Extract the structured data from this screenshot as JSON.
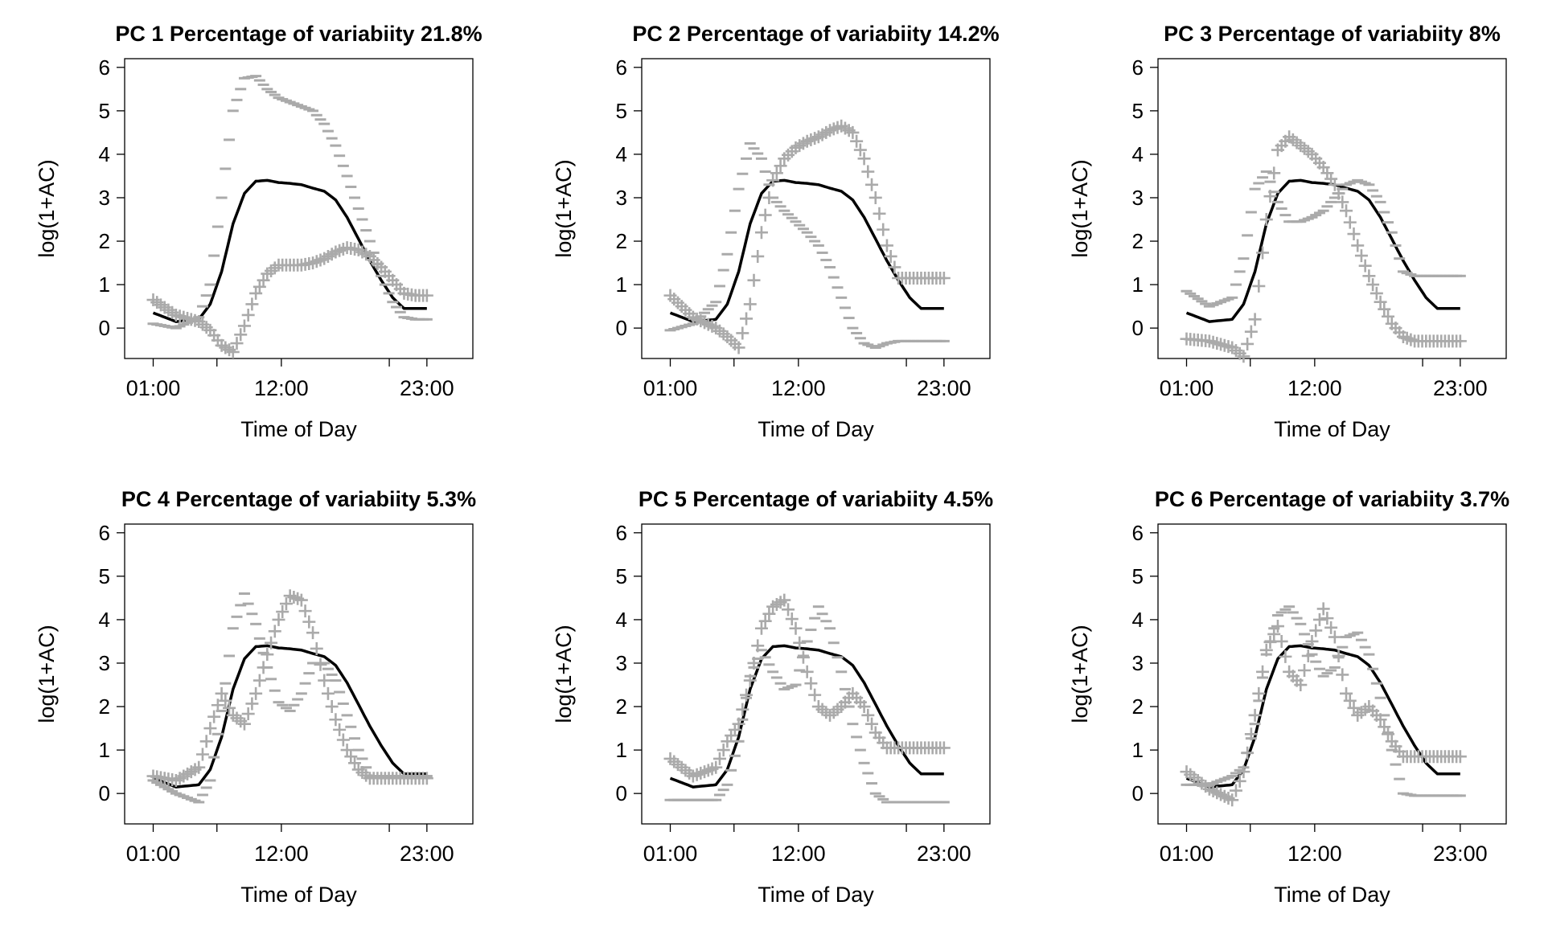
{
  "chart_data": [
    {
      "type": "line",
      "title": "PC 1 Percentage of variabiity 21.8%",
      "xlabel": "Time of Day",
      "ylabel": "log(1+AC)",
      "xticks": [
        "01:00",
        "12:00",
        "23:00"
      ],
      "yticks": [
        "0",
        "1",
        "2",
        "3",
        "4",
        "5",
        "6"
      ],
      "ylim": [
        -0.7,
        6.2
      ],
      "series": [
        {
          "role": "mean",
          "x": [
            0,
            2,
            4,
            5,
            6,
            7,
            8,
            9,
            10,
            11,
            12,
            13,
            14,
            15,
            16,
            17,
            18,
            19,
            20,
            21,
            22,
            23,
            24
          ],
          "y": [
            0.35,
            0.15,
            0.2,
            0.55,
            1.3,
            2.4,
            3.1,
            3.38,
            3.4,
            3.35,
            3.33,
            3.3,
            3.22,
            3.15,
            2.95,
            2.55,
            2.05,
            1.55,
            1.1,
            0.7,
            0.45,
            0.45,
            0.45
          ]
        },
        {
          "role": "plus",
          "x": [
            0,
            2,
            4,
            5,
            6,
            7,
            8,
            9,
            10,
            11,
            12,
            13,
            14,
            15,
            16,
            17,
            18,
            19,
            20,
            21,
            22,
            23,
            24
          ],
          "y": [
            0.65,
            0.3,
            0.15,
            -0.05,
            -0.4,
            -0.55,
            0.05,
            0.8,
            1.25,
            1.45,
            1.45,
            1.45,
            1.5,
            1.6,
            1.75,
            1.85,
            1.8,
            1.65,
            1.4,
            1.1,
            0.8,
            0.75,
            0.75
          ]
        },
        {
          "role": "minus",
          "x": [
            0,
            2,
            4,
            5,
            6,
            7,
            8,
            9,
            10,
            11,
            12,
            13,
            14,
            15,
            16,
            17,
            18,
            19,
            20,
            21,
            22,
            23,
            24
          ],
          "y": [
            0.1,
            0.0,
            0.25,
            1.0,
            3.0,
            5.0,
            5.75,
            5.8,
            5.5,
            5.3,
            5.2,
            5.1,
            5.0,
            4.7,
            4.2,
            3.5,
            2.75,
            2.0,
            1.2,
            0.6,
            0.25,
            0.2,
            0.2
          ]
        }
      ]
    },
    {
      "type": "line",
      "title": "PC 2 Percentage of variabiity 14.2%",
      "xlabel": "Time of Day",
      "ylabel": "log(1+AC)",
      "xticks": [
        "01:00",
        "12:00",
        "23:00"
      ],
      "yticks": [
        "0",
        "1",
        "2",
        "3",
        "4",
        "5",
        "6"
      ],
      "ylim": [
        -0.7,
        6.2
      ],
      "series": [
        {
          "role": "mean",
          "x": [
            0,
            2,
            4,
            5,
            6,
            7,
            8,
            9,
            10,
            11,
            12,
            13,
            14,
            15,
            16,
            17,
            18,
            19,
            20,
            21,
            22,
            23,
            24
          ],
          "y": [
            0.35,
            0.15,
            0.2,
            0.55,
            1.3,
            2.4,
            3.1,
            3.38,
            3.4,
            3.35,
            3.33,
            3.3,
            3.22,
            3.15,
            2.95,
            2.55,
            2.05,
            1.55,
            1.1,
            0.7,
            0.45,
            0.45,
            0.45
          ]
        },
        {
          "role": "plus",
          "x": [
            0,
            2,
            4,
            5,
            6,
            7,
            8,
            9,
            10,
            11,
            12,
            13,
            14,
            15,
            16,
            17,
            18,
            19,
            20,
            21,
            22,
            23,
            24
          ],
          "y": [
            0.75,
            0.25,
            0.0,
            -0.2,
            -0.45,
            0.55,
            2.2,
            3.4,
            3.9,
            4.15,
            4.3,
            4.4,
            4.55,
            4.65,
            4.5,
            3.9,
            3.0,
            1.9,
            1.15,
            1.15,
            1.15,
            1.15,
            1.15
          ]
        },
        {
          "role": "minus",
          "x": [
            0,
            2,
            4,
            5,
            6,
            7,
            8,
            9,
            10,
            11,
            12,
            13,
            14,
            15,
            16,
            17,
            18,
            19,
            20,
            21,
            22,
            23,
            24
          ],
          "y": [
            -0.05,
            0.1,
            0.6,
            1.7,
            3.2,
            4.25,
            3.9,
            3.0,
            2.7,
            2.45,
            2.2,
            1.9,
            1.4,
            0.7,
            0.0,
            -0.35,
            -0.45,
            -0.35,
            -0.3,
            -0.3,
            -0.3,
            -0.3,
            -0.3
          ]
        }
      ]
    },
    {
      "type": "line",
      "title": "PC 3 Percentage of variabiity 8%",
      "xlabel": "Time of Day",
      "ylabel": "log(1+AC)",
      "xticks": [
        "01:00",
        "12:00",
        "23:00"
      ],
      "yticks": [
        "0",
        "1",
        "2",
        "3",
        "4",
        "5",
        "6"
      ],
      "ylim": [
        -0.7,
        6.2
      ],
      "series": [
        {
          "role": "mean",
          "x": [
            0,
            2,
            4,
            5,
            6,
            7,
            8,
            9,
            10,
            11,
            12,
            13,
            14,
            15,
            16,
            17,
            18,
            19,
            20,
            21,
            22,
            23,
            24
          ],
          "y": [
            0.35,
            0.15,
            0.2,
            0.55,
            1.3,
            2.4,
            3.1,
            3.38,
            3.4,
            3.35,
            3.33,
            3.3,
            3.22,
            3.15,
            2.95,
            2.55,
            2.05,
            1.55,
            1.1,
            0.7,
            0.45,
            0.45,
            0.45
          ]
        },
        {
          "role": "plus",
          "x": [
            0,
            2,
            4,
            5,
            6,
            7,
            8,
            9,
            10,
            11,
            12,
            13,
            14,
            15,
            16,
            17,
            18,
            19,
            20,
            21,
            22,
            23,
            24
          ],
          "y": [
            -0.25,
            -0.3,
            -0.45,
            -0.65,
            0.2,
            2.5,
            4.1,
            4.4,
            4.2,
            4.0,
            3.7,
            3.3,
            2.7,
            1.9,
            1.2,
            0.6,
            0.1,
            -0.2,
            -0.3,
            -0.3,
            -0.3,
            -0.3,
            -0.3
          ]
        },
        {
          "role": "minus",
          "x": [
            0,
            2,
            4,
            5,
            6,
            7,
            8,
            9,
            10,
            11,
            12,
            13,
            14,
            15,
            16,
            17,
            18,
            19,
            20,
            21,
            22,
            23,
            24
          ],
          "y": [
            0.85,
            0.5,
            0.7,
            1.6,
            3.2,
            3.6,
            2.9,
            2.45,
            2.45,
            2.55,
            2.7,
            3.0,
            3.3,
            3.4,
            3.3,
            2.9,
            2.2,
            1.3,
            1.2,
            1.2,
            1.2,
            1.2,
            1.2
          ]
        }
      ]
    },
    {
      "type": "line",
      "title": "PC 4 Percentage of variabiity 5.3%",
      "xlabel": "Time of Day",
      "ylabel": "log(1+AC)",
      "xticks": [
        "01:00",
        "12:00",
        "23:00"
      ],
      "yticks": [
        "0",
        "1",
        "2",
        "3",
        "4",
        "5",
        "6"
      ],
      "ylim": [
        -0.7,
        6.2
      ],
      "series": [
        {
          "role": "mean",
          "x": [
            0,
            2,
            4,
            5,
            6,
            7,
            8,
            9,
            10,
            11,
            12,
            13,
            14,
            15,
            16,
            17,
            18,
            19,
            20,
            21,
            22,
            23,
            24
          ],
          "y": [
            0.35,
            0.15,
            0.2,
            0.55,
            1.3,
            2.4,
            3.1,
            3.38,
            3.4,
            3.35,
            3.33,
            3.3,
            3.22,
            3.15,
            2.95,
            2.55,
            2.05,
            1.55,
            1.1,
            0.7,
            0.45,
            0.45,
            0.45
          ]
        },
        {
          "role": "plus",
          "x": [
            0,
            2,
            4,
            5,
            6,
            7,
            8,
            9,
            10,
            11,
            12,
            13,
            14,
            15,
            16,
            17,
            18,
            19,
            20,
            21,
            22,
            23,
            24
          ],
          "y": [
            0.4,
            0.3,
            0.6,
            1.5,
            2.3,
            1.8,
            1.6,
            2.3,
            3.2,
            4.0,
            4.55,
            4.45,
            3.7,
            2.6,
            1.7,
            1.0,
            0.55,
            0.35,
            0.35,
            0.35,
            0.35,
            0.35,
            0.35
          ]
        },
        {
          "role": "minus",
          "x": [
            0,
            2,
            4,
            5,
            6,
            7,
            8,
            9,
            10,
            11,
            12,
            13,
            14,
            15,
            16,
            17,
            18,
            19,
            20,
            21,
            22,
            23,
            24
          ],
          "y": [
            0.3,
            0.0,
            -0.2,
            0.3,
            1.9,
            3.8,
            4.6,
            3.9,
            2.9,
            2.1,
            1.9,
            2.3,
            3.0,
            3.0,
            2.6,
            1.8,
            1.0,
            0.4,
            0.4,
            0.4,
            0.4,
            0.4,
            0.4
          ]
        }
      ]
    },
    {
      "type": "line",
      "title": "PC 5 Percentage of variabiity 4.5%",
      "xlabel": "Time of Day",
      "ylabel": "log(1+AC)",
      "xticks": [
        "01:00",
        "12:00",
        "23:00"
      ],
      "yticks": [
        "0",
        "1",
        "2",
        "3",
        "4",
        "5",
        "6"
      ],
      "ylim": [
        -0.7,
        6.2
      ],
      "series": [
        {
          "role": "mean",
          "x": [
            0,
            2,
            4,
            5,
            6,
            7,
            8,
            9,
            10,
            11,
            12,
            13,
            14,
            15,
            16,
            17,
            18,
            19,
            20,
            21,
            22,
            23,
            24
          ],
          "y": [
            0.35,
            0.15,
            0.2,
            0.55,
            1.3,
            2.4,
            3.1,
            3.38,
            3.4,
            3.35,
            3.33,
            3.3,
            3.22,
            3.15,
            2.95,
            2.55,
            2.05,
            1.55,
            1.1,
            0.7,
            0.45,
            0.45,
            0.45
          ]
        },
        {
          "role": "plus",
          "x": [
            0,
            2,
            4,
            5,
            6,
            7,
            8,
            9,
            10,
            11,
            12,
            13,
            14,
            15,
            16,
            17,
            18,
            19,
            20,
            21,
            22,
            23,
            24
          ],
          "y": [
            0.8,
            0.4,
            0.6,
            1.2,
            1.6,
            2.6,
            3.8,
            4.3,
            4.45,
            3.8,
            2.8,
            2.0,
            1.8,
            2.0,
            2.3,
            2.0,
            1.4,
            1.05,
            1.05,
            1.05,
            1.05,
            1.05,
            1.05
          ]
        },
        {
          "role": "minus",
          "x": [
            0,
            2,
            4,
            5,
            6,
            7,
            8,
            9,
            10,
            11,
            12,
            13,
            14,
            15,
            16,
            17,
            18,
            19,
            20,
            21,
            22,
            23,
            24
          ],
          "y": [
            -0.15,
            -0.15,
            -0.15,
            0.2,
            1.2,
            2.7,
            3.3,
            2.8,
            2.4,
            2.5,
            3.5,
            4.3,
            3.8,
            2.8,
            1.6,
            0.7,
            0.0,
            -0.2,
            -0.2,
            -0.2,
            -0.2,
            -0.2,
            -0.2
          ]
        }
      ]
    },
    {
      "type": "line",
      "title": "PC 6 Percentage of variabiity 3.7%",
      "xlabel": "Time of Day",
      "ylabel": "log(1+AC)",
      "xticks": [
        "01:00",
        "12:00",
        "23:00"
      ],
      "yticks": [
        "0",
        "1",
        "2",
        "3",
        "4",
        "5",
        "6"
      ],
      "ylim": [
        -0.7,
        6.2
      ],
      "series": [
        {
          "role": "mean",
          "x": [
            0,
            2,
            4,
            5,
            6,
            7,
            8,
            9,
            10,
            11,
            12,
            13,
            14,
            15,
            16,
            17,
            18,
            19,
            20,
            21,
            22,
            23,
            24
          ],
          "y": [
            0.35,
            0.15,
            0.2,
            0.55,
            1.3,
            2.4,
            3.1,
            3.38,
            3.4,
            3.35,
            3.33,
            3.3,
            3.22,
            3.15,
            2.95,
            2.55,
            2.05,
            1.55,
            1.1,
            0.7,
            0.45,
            0.45,
            0.45
          ]
        },
        {
          "role": "plus",
          "x": [
            0,
            2,
            4,
            5,
            6,
            7,
            8,
            9,
            10,
            11,
            12,
            13,
            14,
            15,
            16,
            17,
            18,
            19,
            20,
            21,
            22,
            23,
            24
          ],
          "y": [
            0.5,
            0.1,
            -0.15,
            0.5,
            1.8,
            3.3,
            3.85,
            2.8,
            2.5,
            3.5,
            4.25,
            3.6,
            2.3,
            1.8,
            2.0,
            1.7,
            1.2,
            0.85,
            0.85,
            0.85,
            0.85,
            0.85,
            0.85
          ]
        },
        {
          "role": "minus",
          "x": [
            0,
            2,
            4,
            5,
            6,
            7,
            8,
            9,
            10,
            11,
            12,
            13,
            14,
            15,
            16,
            17,
            18,
            19,
            20,
            21,
            22,
            23,
            24
          ],
          "y": [
            0.2,
            0.2,
            0.4,
            0.6,
            1.6,
            3.2,
            4.1,
            4.3,
            3.9,
            3.2,
            2.7,
            2.9,
            3.6,
            3.7,
            3.2,
            2.2,
            1.0,
            0.0,
            -0.05,
            -0.05,
            -0.05,
            -0.05,
            -0.05
          ]
        }
      ]
    }
  ]
}
